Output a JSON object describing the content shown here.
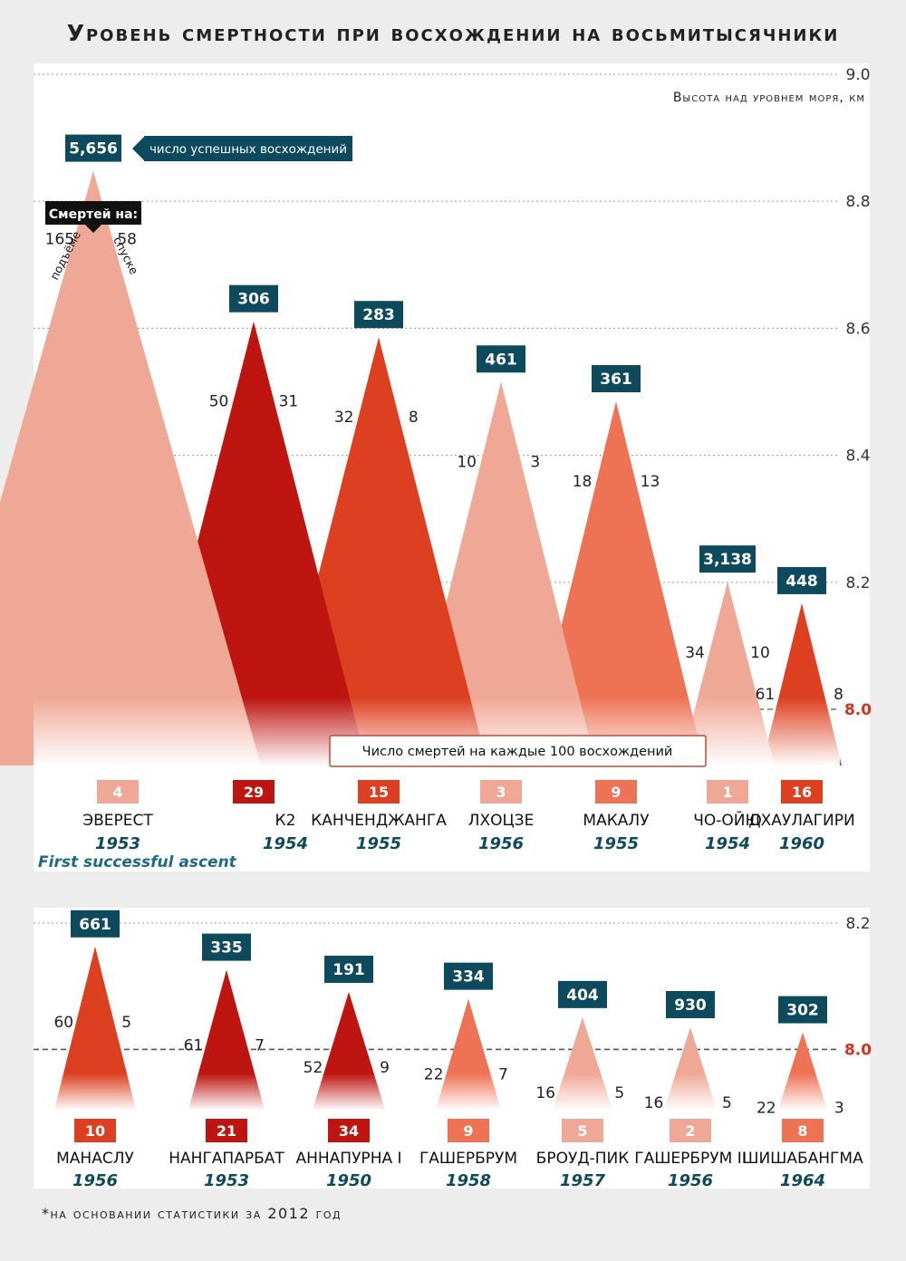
{
  "title": "Уровень смертности при восхождении на восьмитысячники",
  "footnote": "*на основании статистики за 2012 год",
  "legend": {
    "altitude_label": "Высота над уровнем моря, км",
    "ascents_label": "число успешных восхождений",
    "deaths_on": "Смертей на:",
    "ascent_side": "подъёме",
    "descent_side": "спуске",
    "rate_label": "Число смертей на каждые 100 восхождений",
    "first_ascent": "First successful ascent"
  },
  "colors": {
    "background": "#ededed",
    "panel": "#ffffff",
    "navy": "#0e4a5e",
    "light": "#f0a896",
    "medium": "#ee7355",
    "strong": "#dd4020",
    "dark": "#be1510"
  },
  "chart_data": [
    {
      "type": "area",
      "title": "Уровень смертности при восхождении на восьмитысячники",
      "ylabel": "Высота над уровнем моря, км",
      "ylim": [
        7.94,
        9.0
      ],
      "yticks": [
        "9.0",
        "8.8",
        "8.6",
        "8.4",
        "8.2",
        "8.0"
      ],
      "peaks": [
        {
          "name": "Эверест",
          "year": "1953",
          "height": 8.848,
          "ascents": "5,656",
          "deaths_ascent": "165",
          "deaths_descent": "58",
          "rate": "4",
          "color": "light"
        },
        {
          "name": "К2",
          "year": "1954",
          "height": 8.611,
          "ascents": "306",
          "deaths_ascent": "50",
          "deaths_descent": "31",
          "rate": "29",
          "color": "dark"
        },
        {
          "name": "Канченджанга",
          "year": "1955",
          "height": 8.586,
          "ascents": "283",
          "deaths_ascent": "32",
          "deaths_descent": "8",
          "rate": "15",
          "color": "strong"
        },
        {
          "name": "Лхоцзе",
          "year": "1956",
          "height": 8.516,
          "ascents": "461",
          "deaths_ascent": "10",
          "deaths_descent": "3",
          "rate": "3",
          "color": "light"
        },
        {
          "name": "Макалу",
          "year": "1955",
          "height": 8.485,
          "ascents": "361",
          "deaths_ascent": "18",
          "deaths_descent": "13",
          "rate": "9",
          "color": "medium"
        },
        {
          "name": "Чо-Ойю",
          "year": "1954",
          "height": 8.201,
          "ascents": "3,138",
          "deaths_ascent": "34",
          "deaths_descent": "10",
          "rate": "1",
          "color": "light"
        },
        {
          "name": "Дхаулагири",
          "year": "1960",
          "height": 8.167,
          "ascents": "448",
          "deaths_ascent": "61",
          "deaths_descent": "8",
          "rate": "16",
          "color": "strong"
        }
      ]
    },
    {
      "type": "area",
      "ylim": [
        7.93,
        8.2
      ],
      "yticks": [
        "8.2",
        "8.0"
      ],
      "peaks": [
        {
          "name": "Манаслу",
          "year": "1956",
          "height": 8.163,
          "ascents": "661",
          "deaths_ascent": "60",
          "deaths_descent": "5",
          "rate": "10",
          "color": "strong"
        },
        {
          "name": "Нангапарбат",
          "year": "1953",
          "height": 8.126,
          "ascents": "335",
          "deaths_ascent": "61",
          "deaths_descent": "7",
          "rate": "21",
          "color": "dark"
        },
        {
          "name": "Аннапурна I",
          "year": "1950",
          "height": 8.091,
          "ascents": "191",
          "deaths_ascent": "52",
          "deaths_descent": "9",
          "rate": "34",
          "color": "dark"
        },
        {
          "name": "Гашербрум",
          "year": "1958",
          "height": 8.08,
          "ascents": "334",
          "deaths_ascent": "22",
          "deaths_descent": "7",
          "rate": "9",
          "color": "medium"
        },
        {
          "name": "Броуд-Пик",
          "year": "1957",
          "height": 8.051,
          "ascents": "404",
          "deaths_ascent": "16",
          "deaths_descent": "5",
          "rate": "5",
          "color": "light"
        },
        {
          "name": "Гашербрум II",
          "year": "1956",
          "height": 8.035,
          "ascents": "930",
          "deaths_ascent": "16",
          "deaths_descent": "5",
          "rate": "2",
          "color": "light"
        },
        {
          "name": "Шишабангма",
          "year": "1964",
          "height": 8.027,
          "ascents": "302",
          "deaths_ascent": "22",
          "deaths_descent": "3",
          "rate": "8",
          "color": "medium"
        }
      ]
    }
  ]
}
